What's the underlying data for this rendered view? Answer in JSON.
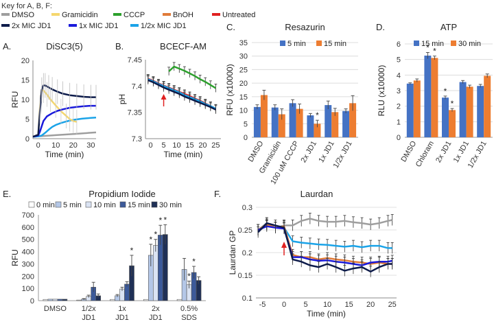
{
  "key": {
    "title": "Key for  A, B, F:",
    "row1": [
      {
        "label": "DMSO",
        "color": "#9e9e9e"
      },
      {
        "label": "Gramicidin",
        "color": "#f5d76e"
      },
      {
        "label": "CCCP",
        "color": "#2ca02c"
      },
      {
        "label": "BnOH",
        "color": "#e07b39"
      },
      {
        "label": "Untreated",
        "color": "#e02020"
      }
    ],
    "row2": [
      {
        "label": "2x MIC JD1",
        "color": "#0d1b4a"
      },
      {
        "label": "1x MIC JD1",
        "color": "#1a1adb"
      },
      {
        "label": "1/2x MIC JD1",
        "color": "#1aa3e8"
      }
    ]
  },
  "chart_data": [
    {
      "panel": "A.",
      "title": "DiSC3(5)",
      "type": "line",
      "xlabel": "Time (min)",
      "ylabel": "RFU",
      "xlim": [
        -3,
        33
      ],
      "ylim": [
        0,
        20
      ],
      "xticks": [
        0,
        10,
        20,
        30
      ],
      "yticks": [
        0,
        5,
        10,
        15,
        20
      ],
      "series": [
        {
          "name": "DMSO",
          "color": "#9e9e9e",
          "x": [
            -3,
            0,
            10,
            20,
            30,
            33
          ],
          "y": [
            0.5,
            0.6,
            0.9,
            1.2,
            1.5,
            1.6
          ]
        },
        {
          "name": "1/2x MIC JD1",
          "color": "#1aa3e8",
          "x": [
            -3,
            0,
            2,
            4,
            6,
            8,
            10,
            13,
            16,
            20,
            25,
            30,
            33
          ],
          "y": [
            0.5,
            0.6,
            0.8,
            1.5,
            2.3,
            3,
            3.5,
            4,
            4.4,
            4.8,
            5.1,
            5.3,
            5.4
          ]
        },
        {
          "name": "Gramicidin",
          "color": "#f5d76e",
          "x": [
            -3,
            0,
            1,
            2,
            3,
            5,
            7,
            10,
            13,
            16,
            18,
            20,
            22
          ],
          "y": [
            0.5,
            1,
            8,
            12.5,
            12.3,
            11.3,
            10,
            8.5,
            7,
            5.8,
            5,
            4.5,
            4.3
          ]
        },
        {
          "name": "1x MIC JD1",
          "color": "#1a1adb",
          "x": [
            -3,
            0,
            1,
            2,
            3,
            5,
            8,
            11,
            14,
            18,
            22,
            26,
            30,
            33
          ],
          "y": [
            0.5,
            0.8,
            1.8,
            3.2,
            4.5,
            5.7,
            6.5,
            7.1,
            7.5,
            7.9,
            8.1,
            8.3,
            8.4,
            8.4
          ]
        },
        {
          "name": "2x MIC JD1",
          "color": "#0d1b4a",
          "x": [
            -3,
            0,
            1,
            2,
            3,
            4,
            6,
            8,
            11,
            14,
            18,
            22,
            26,
            30,
            33
          ],
          "y": [
            0.5,
            1,
            7,
            12.5,
            13.6,
            13.6,
            13.1,
            12.6,
            12,
            11.5,
            11.1,
            10.9,
            10.7,
            10.6,
            10.6
          ]
        }
      ]
    },
    {
      "panel": "B.",
      "title": "BCECF-AM",
      "type": "line",
      "xlabel": "Time (min)",
      "ylabel": "pH",
      "xlim": [
        -2,
        27
      ],
      "ylim": [
        7.3,
        7.45
      ],
      "xticks": [
        0,
        5,
        10,
        15,
        20,
        25
      ],
      "yticks": [
        "7.3",
        "7.35",
        "7.4",
        "7.45"
      ],
      "series": [
        {
          "name": "CCCP",
          "color": "#2ca02c",
          "x": [
            7,
            9,
            11,
            13,
            15,
            17,
            19,
            21,
            23,
            25
          ],
          "y": [
            7.428,
            7.437,
            7.433,
            7.429,
            7.424,
            7.419,
            7.413,
            7.408,
            7.402,
            7.396
          ]
        },
        {
          "name": "Untreated",
          "color": "#e02020",
          "x": [
            -1,
            1,
            3,
            5,
            7,
            9,
            11,
            13,
            15,
            17,
            19,
            21,
            23,
            25
          ],
          "y": [
            7.414,
            7.41,
            7.405,
            7.401,
            7.397,
            7.393,
            7.389,
            7.385,
            7.381,
            7.376,
            7.372,
            7.367,
            7.362,
            7.357
          ]
        },
        {
          "name": "1/2x MIC JD1",
          "color": "#1aa3e8",
          "x": [
            -1,
            1,
            3,
            5,
            7,
            9,
            11,
            13,
            15,
            17,
            19,
            21,
            23,
            25
          ],
          "y": [
            7.413,
            7.409,
            7.404,
            7.4,
            7.396,
            7.392,
            7.388,
            7.383,
            7.379,
            7.375,
            7.371,
            7.366,
            7.362,
            7.357
          ]
        },
        {
          "name": "2x MIC JD1",
          "color": "#0d1b4a",
          "x": [
            -1,
            1,
            3,
            5,
            7,
            9,
            11,
            13,
            15,
            17,
            19,
            21,
            23,
            25
          ],
          "y": [
            7.411,
            7.407,
            7.402,
            7.397,
            7.393,
            7.389,
            7.385,
            7.38,
            7.376,
            7.372,
            7.368,
            7.364,
            7.36,
            7.355
          ]
        }
      ],
      "annotation": "red arrow at 5 min"
    },
    {
      "panel": "C.",
      "title": "Resazurin",
      "type": "bar",
      "ylabel": "RFU (x10000)",
      "ylim": [
        0,
        35
      ],
      "yticks": [
        0,
        5,
        10,
        15,
        20,
        25,
        30,
        35
      ],
      "categories": [
        "DMSO",
        "Gramicidin",
        "100 uM CCCP",
        "2x JD1",
        "1x JD1",
        "1/2x JD1"
      ],
      "series": [
        {
          "name": "5 min",
          "color": "#4472c4",
          "values": [
            11.2,
            11,
            12.6,
            8.1,
            11.9,
            9.7
          ]
        },
        {
          "name": "15 min",
          "color": "#ed7d31",
          "values": [
            15.6,
            8.5,
            10.5,
            5,
            9.3,
            12.6
          ]
        }
      ],
      "errors": [
        [
          0.8,
          1,
          1.3,
          0.7,
          1.5,
          0.8
        ],
        [
          1.8,
          2,
          1.8,
          1.3,
          1.4,
          2.8
        ]
      ],
      "stars": [
        "",
        "",
        "",
        "",
        "",
        "",
        "",
        "*",
        "",
        "",
        "",
        ""
      ]
    },
    {
      "panel": "D.",
      "title": "ATP",
      "type": "bar",
      "ylabel": "RLU (x10000)",
      "ylim": [
        0,
        6
      ],
      "yticks": [
        0,
        1,
        2,
        3,
        4,
        5,
        6
      ],
      "categories": [
        "DMSO",
        "Chloram",
        "2x JD1",
        "1x JD1",
        "1/2x JD1"
      ],
      "series": [
        {
          "name": "15 min",
          "color": "#4472c4",
          "values": [
            3.45,
            5.25,
            2.55,
            3.55,
            3.3
          ]
        },
        {
          "name": "30 min",
          "color": "#ed7d31",
          "values": [
            3.65,
            5.1,
            1.75,
            3.25,
            3.95
          ]
        }
      ],
      "errors": [
        [
          0.05,
          0.2,
          0.1,
          0.1,
          0.1
        ],
        [
          0.1,
          0.12,
          0.1,
          0.1,
          0.12
        ]
      ],
      "stars": [
        "",
        "",
        "*",
        "*",
        "*",
        "*",
        "",
        "",
        "",
        ""
      ]
    },
    {
      "panel": "E.",
      "title": "Propidium Iodide",
      "type": "bar",
      "ylabel": "RFU",
      "ylim": [
        0,
        700
      ],
      "yticks": [
        0,
        100,
        200,
        300,
        400,
        500,
        600,
        700
      ],
      "categories": [
        "DMSO",
        "1/2x JD1",
        "1x JD1",
        "2x JD1",
        "0.5% SDS"
      ],
      "series": [
        {
          "name": "0 min",
          "fill": "#ffffff",
          "values": [
            10,
            5,
            10,
            10,
            10
          ]
        },
        {
          "name": "5 min",
          "fill": "#b4c7e7",
          "values": [
            12,
            12,
            40,
            370,
            255
          ]
        },
        {
          "name": "10 min",
          "fill": "#dae3f3",
          "values": [
            12,
            35,
            95,
            450,
            130
          ]
        },
        {
          "name": "15 min",
          "fill": "#3c5a9a",
          "values": [
            12,
            110,
            135,
            535,
            230
          ]
        },
        {
          "name": "30 min",
          "fill": "#1f3056",
          "values": [
            12,
            40,
            285,
            540,
            165
          ]
        }
      ],
      "errors": [
        [
          0,
          0,
          0,
          0,
          0
        ],
        [
          0,
          5,
          10,
          90,
          90
        ],
        [
          0,
          10,
          15,
          50,
          30
        ],
        [
          0,
          40,
          20,
          80,
          50
        ],
        [
          0,
          15,
          85,
          80,
          30
        ]
      ],
      "stars": [
        [
          "",
          "",
          "",
          "",
          ""
        ],
        [
          "",
          "",
          "",
          "*",
          ""
        ],
        [
          "",
          "",
          "",
          "*",
          "*"
        ],
        [
          "",
          "",
          "",
          "*",
          "*"
        ],
        [
          "",
          "",
          "*",
          "*",
          ""
        ]
      ]
    },
    {
      "panel": "F.",
      "title": "Laurdan",
      "type": "line",
      "xlabel": "Time (min)",
      "ylabel": "Laurdan GP",
      "xlim": [
        -6.5,
        26
      ],
      "ylim": [
        0.1,
        0.3
      ],
      "xticks": [
        -5,
        0,
        5,
        10,
        15,
        20,
        25
      ],
      "yticks": [
        "0.1",
        "0.15",
        "0.2",
        "0.25",
        "0.3"
      ],
      "series": [
        {
          "name": "DMSO",
          "color": "#9e9e9e",
          "x": [
            -6,
            -4,
            -2,
            0,
            2,
            4,
            6,
            8,
            10,
            12,
            14,
            16,
            18,
            20,
            22,
            24,
            25
          ],
          "y": [
            0.25,
            0.265,
            0.255,
            0.26,
            0.26,
            0.27,
            0.275,
            0.27,
            0.268,
            0.268,
            0.27,
            0.267,
            0.265,
            0.262,
            0.265,
            0.27,
            0.272
          ]
        },
        {
          "name": "1/2x MIC JD1",
          "color": "#1aa3e8",
          "x": [
            -6,
            -4,
            -2,
            0,
            2,
            4,
            6,
            8,
            10,
            12,
            14,
            16,
            18,
            20,
            22,
            24,
            25
          ],
          "y": [
            0.25,
            0.26,
            0.255,
            0.255,
            0.225,
            0.222,
            0.22,
            0.218,
            0.217,
            0.215,
            0.213,
            0.215,
            0.212,
            0.215,
            0.215,
            0.21,
            0.21
          ]
        },
        {
          "name": "BnOH",
          "color": "#e07b39",
          "x": [
            -6,
            -4,
            -2,
            0,
            2,
            4,
            6,
            8,
            10,
            12,
            14,
            16,
            18,
            20,
            22,
            24,
            25
          ],
          "y": [
            0.25,
            0.262,
            0.255,
            0.258,
            0.195,
            0.19,
            0.19,
            0.185,
            0.188,
            0.185,
            0.183,
            0.18,
            0.178,
            0.175,
            0.178,
            0.175,
            0.175
          ]
        },
        {
          "name": "1x MIC JD1",
          "color": "#1a1adb",
          "x": [
            -6,
            -4,
            -2,
            0,
            2,
            4,
            6,
            8,
            10,
            12,
            14,
            16,
            18,
            20,
            22,
            24,
            25
          ],
          "y": [
            0.25,
            0.258,
            0.255,
            0.253,
            0.19,
            0.19,
            0.185,
            0.182,
            0.183,
            0.18,
            0.178,
            0.175,
            0.172,
            0.178,
            0.18,
            0.18,
            0.182
          ]
        },
        {
          "name": "2x MIC JD1",
          "color": "#0d1b4a",
          "x": [
            -6,
            -4,
            -2,
            0,
            2,
            4,
            6,
            8,
            10,
            12,
            14,
            16,
            18,
            20,
            22,
            24,
            25
          ],
          "y": [
            0.245,
            0.265,
            0.26,
            0.255,
            0.185,
            0.18,
            0.172,
            0.168,
            0.175,
            0.168,
            0.16,
            0.165,
            0.168,
            0.158,
            0.168,
            0.175,
            0.175
          ]
        }
      ],
      "annotation": "red arrow at 0 min"
    }
  ]
}
